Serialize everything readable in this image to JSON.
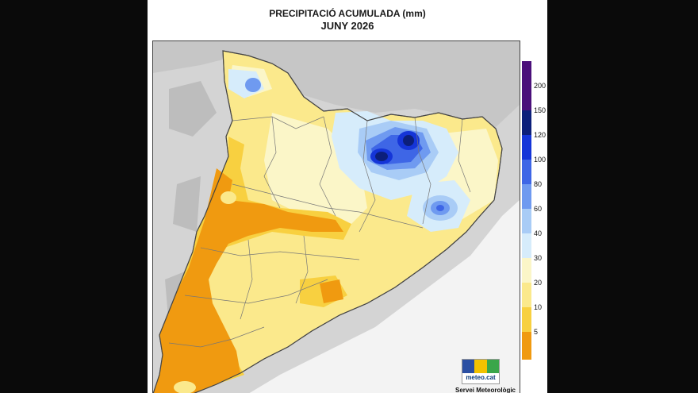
{
  "title_line1": "PRECIPITACIÓ ACUMULADA (mm)",
  "title_line2": "JUNY 2026",
  "legend": {
    "labels": [
      "200",
      "150",
      "120",
      "100",
      "80",
      "60",
      "40",
      "30",
      "20",
      "10",
      "5"
    ],
    "colors": [
      "#4b0f7a",
      "#0c1f7a",
      "#1535d8",
      "#3e66e6",
      "#6f9af0",
      "#a9ccf6",
      "#d6ecfb",
      "#fbf6c8",
      "#fbe98c",
      "#f8d040",
      "#f09a10"
    ]
  },
  "logo": {
    "text": "meteo.cat",
    "colors": [
      "#2a4fa3",
      "#f2c200",
      "#3aa64a"
    ]
  },
  "credit": "Servei Meteorològic",
  "map_colors": {
    "land_outside": "#cfcfcf",
    "sea": "#f1f1f1",
    "border": "#666666"
  }
}
